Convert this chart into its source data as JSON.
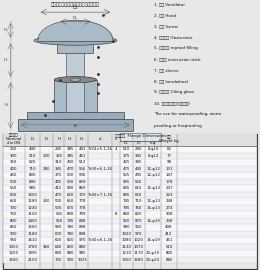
{
  "title": "外部船舶风用压盖、带轴密风机通风筒",
  "legend_items": [
    "1. 风帽 Ventilator",
    "2. 风罩 Hood",
    "3. 螺钉 Screw",
    "4. 风帽堵盖 Obsturator",
    "5. 填料填料 reproof filling",
    "6. 指示棒 instruction stick",
    "7. 滑管 sleeve",
    "8. 手轮 handwheel",
    "9. 压注油杯 Oiling glass",
    "10. 泡沫、船舱用(成防火用)",
    "The use for waterproofing, worm",
    "proofing or fireproofing"
  ],
  "rows": [
    [
      "250",
      "440",
      "",
      "245",
      "385",
      "441",
      "Tr24×5-1,26",
      "4",
      "510",
      "290",
      "8-φ10",
      "62"
    ],
    [
      "300",
      "510",
      "200",
      "265",
      "385",
      "461",
      "",
      "",
      "375",
      "345",
      "8-φ12",
      "77"
    ],
    [
      "350",
      "620",
      "",
      "310",
      "430",
      "512",
      "",
      "",
      "425",
      "395",
      "",
      "98"
    ],
    [
      "400",
      "710",
      "280",
      "345",
      "470",
      "566",
      "Tr30×6-1,26",
      "",
      "475",
      "445",
      "12-φ12",
      "131"
    ],
    [
      "450",
      "800",
      "",
      "375",
      "500",
      "596",
      "",
      "",
      "525",
      "495",
      "12-φ12",
      "147"
    ],
    [
      "500",
      "890",
      "",
      "405",
      "530",
      "839",
      "",
      "",
      "585",
      "560",
      "",
      "178"
    ],
    [
      "550",
      "980",
      "",
      "415",
      "580",
      "869",
      "",
      "",
      "645",
      "610",
      "12-φ13",
      "207"
    ],
    [
      "600",
      "1050",
      "",
      "470",
      "620",
      "729",
      "Tr40×7-1,26",
      "",
      "685",
      "660",
      "",
      "223"
    ],
    [
      "650",
      "1180",
      "320",
      "500",
      "650",
      "778",
      "",
      "",
      "745",
      "710",
      "12-φ13",
      "248"
    ],
    [
      "700",
      "1240",
      "",
      "530",
      "670",
      "778",
      "",
      "",
      "795",
      "760",
      "16-φ13",
      "274"
    ],
    [
      "750",
      "1150",
      "",
      "545",
      "680",
      "799",
      "",
      "8",
      "860",
      "820",
      "",
      "308"
    ],
    [
      "800",
      "1450",
      "",
      "560",
      "745",
      "848",
      "",
      "",
      "920",
      "870",
      "16-φ19",
      "338"
    ],
    [
      "850",
      "1500",
      "",
      "580",
      "780",
      "898",
      "",
      "",
      "980",
      "920",
      "",
      "408"
    ],
    [
      "900",
      "1180",
      "",
      "600",
      "780",
      "898",
      "",
      "",
      "1020",
      "970",
      "",
      "412"
    ],
    [
      "950",
      "1610",
      "",
      "620",
      "820",
      "970",
      "Tr40×8-1,26",
      "",
      "1080",
      "1020",
      "16-φ19",
      "451"
    ],
    [
      "1000",
      "1780",
      "360",
      "640",
      "820",
      "880",
      "",
      "",
      "1130",
      "1070",
      "",
      "510"
    ],
    [
      "1200",
      "1995",
      "",
      "680",
      "880",
      "985",
      "",
      "",
      "1210",
      "1170",
      "20-φ19",
      "805"
    ],
    [
      "1500",
      "2100",
      "",
      "720",
      "900",
      "1025",
      "",
      "",
      "1350",
      "1280",
      "20-φ24",
      "885"
    ]
  ],
  "diagram_bg": "#ccd8e0",
  "fig_bg": "#e8e8e8"
}
